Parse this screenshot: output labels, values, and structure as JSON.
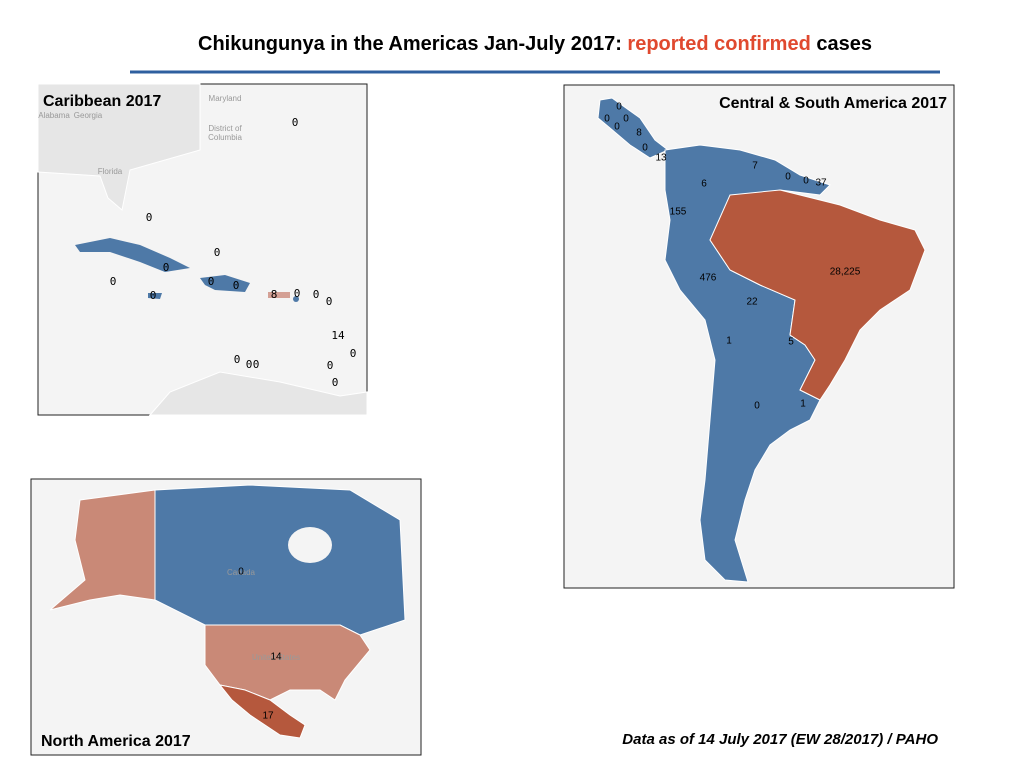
{
  "title": {
    "prefix": "Chikungunya in the Americas Jan-July 2017:",
    "highlight": "reported confirmed",
    "suffix": "cases"
  },
  "footnote": "Data as of 14 July 2017 (EW 28/2017) / PAHO",
  "maps": [
    {
      "title": "Caribbean 2017",
      "place_labels": [
        "Maryland",
        "Alabama",
        "Georgia",
        "District of",
        "Columbia",
        "Florida"
      ],
      "case_labels": [
        0,
        0,
        0,
        0,
        0,
        0,
        0,
        0,
        8,
        0,
        0,
        0,
        14,
        0,
        0,
        0,
        0,
        0,
        0
      ]
    },
    {
      "title": "Central & South America 2017",
      "case_labels": [
        0,
        0,
        0,
        0,
        8,
        0,
        13,
        7,
        0,
        0,
        37,
        6,
        155,
        {
          "value": 28225,
          "label": "28,225"
        },
        476,
        22,
        1,
        5,
        0,
        1
      ]
    },
    {
      "title": "North America 2017",
      "place_labels": [
        "Canada",
        "United States"
      ],
      "case_labels": [
        0,
        14,
        17
      ]
    }
  ]
}
